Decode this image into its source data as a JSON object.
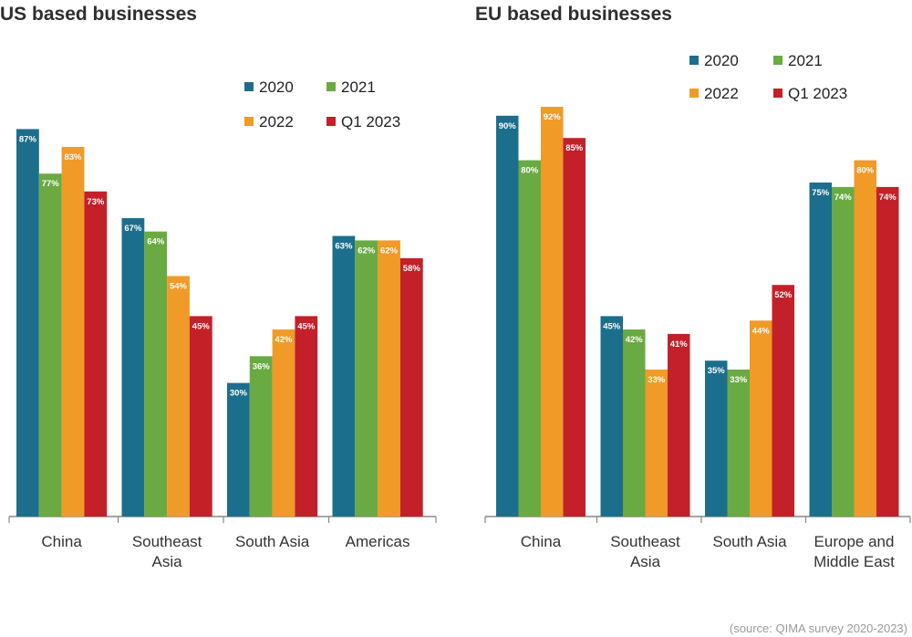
{
  "colors": {
    "2020": "#1c6f8c",
    "2021": "#6aaa42",
    "2022": "#f09a28",
    "Q1 2023": "#c4202a",
    "axis": "#888888"
  },
  "source": "(source: QIMA survey 2020-2023)",
  "chart_data": [
    {
      "type": "bar",
      "title": "US based businesses",
      "categories": [
        [
          "China"
        ],
        [
          "Southeast",
          "Asia"
        ],
        [
          "South Asia"
        ],
        [
          "Americas"
        ]
      ],
      "series": [
        {
          "name": "2020",
          "values": [
            87,
            67,
            30,
            63
          ]
        },
        {
          "name": "2021",
          "values": [
            77,
            64,
            36,
            62
          ]
        },
        {
          "name": "2022",
          "values": [
            83,
            54,
            42,
            62
          ]
        },
        {
          "name": "Q1 2023",
          "values": [
            73,
            45,
            45,
            58
          ]
        }
      ],
      "data_label_suffix": "%",
      "ylim": [
        0,
        100
      ],
      "legend": "top-right",
      "grid": false
    },
    {
      "type": "bar",
      "title": "EU based businesses",
      "categories": [
        [
          "China"
        ],
        [
          "Southeast",
          "Asia"
        ],
        [
          "South Asia"
        ],
        [
          "Europe and",
          "Middle East"
        ]
      ],
      "series": [
        {
          "name": "2020",
          "values": [
            90,
            45,
            35,
            75
          ]
        },
        {
          "name": "2021",
          "values": [
            80,
            42,
            33,
            74
          ]
        },
        {
          "name": "2022",
          "values": [
            92,
            33,
            44,
            80
          ]
        },
        {
          "name": "Q1 2023",
          "values": [
            85,
            41,
            52,
            74
          ]
        }
      ],
      "data_label_suffix": "%",
      "ylim": [
        0,
        100
      ],
      "legend": "top-right",
      "grid": false
    }
  ]
}
